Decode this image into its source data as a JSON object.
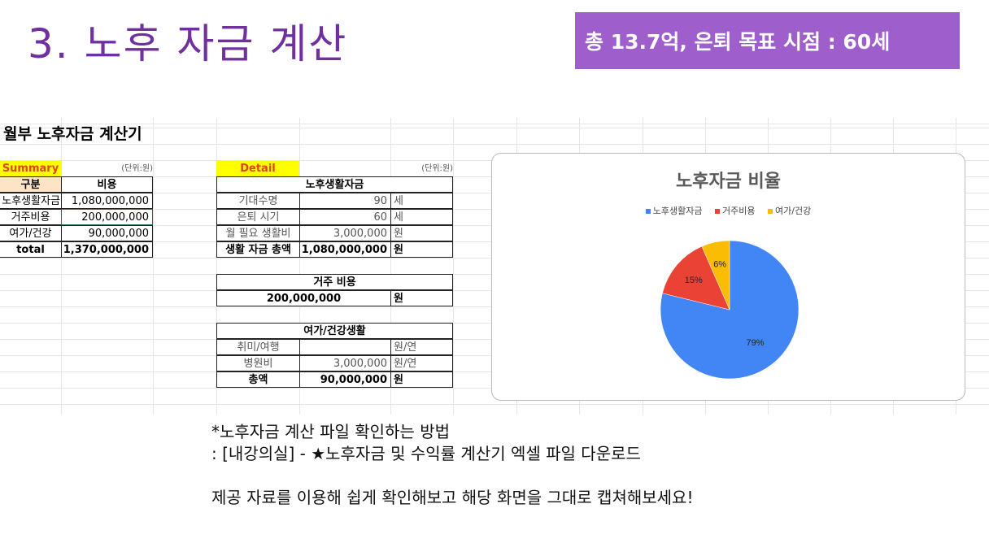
{
  "slide": {
    "title": "3. 노후 자금 계산",
    "banner": "총 13.7억, 은퇴 목표 시점 : 60세"
  },
  "sheet": {
    "title": "월부 노후자금 계산기",
    "summary": {
      "label": "Summary",
      "unit": "(단위:원)",
      "headers": [
        "구분",
        "비용"
      ],
      "rows": [
        [
          "노후생활자금",
          "1,080,000,000"
        ],
        [
          "거주비용",
          "200,000,000"
        ],
        [
          "여가/건강",
          "90,000,000"
        ],
        [
          "total",
          "1,370,000,000"
        ]
      ]
    },
    "detail": {
      "label": "Detail",
      "unit": "(단위:원)",
      "living": {
        "header": "노후생활자금",
        "rows": [
          [
            "기대수명",
            "90",
            "세"
          ],
          [
            "은퇴 시기",
            "60",
            "세"
          ],
          [
            "월 필요 생활비",
            "3,000,000",
            "원"
          ],
          [
            "생활 자금 총액",
            "1,080,000,000",
            "원"
          ]
        ]
      },
      "housing": {
        "header": "거주 비용",
        "value": "200,000,000",
        "unit": "원"
      },
      "leisure": {
        "header": "여가/건강생활",
        "rows": [
          [
            "취미/여행",
            "",
            "원/연"
          ],
          [
            "병원비",
            "3,000,000",
            "원/연"
          ],
          [
            "총액",
            "90,000,000",
            "원"
          ]
        ]
      }
    }
  },
  "chart_data": {
    "type": "pie",
    "title": "노후자금 비율",
    "categories": [
      "노후생활자금",
      "거주비용",
      "여가/건강"
    ],
    "values": [
      1080000000,
      200000000,
      90000000
    ],
    "labels": [
      "79%",
      "15%",
      "6%"
    ],
    "colors": [
      "#4285f4",
      "#ea4335",
      "#fbbc04"
    ],
    "legend": "top"
  },
  "notes": {
    "line1": "*노후자금 계산 파일 확인하는 방법",
    "line2": ": [내강의실] - ★노후자금 및 수익률 계산기 엑셀 파일 다운로드",
    "line3": "제공 자료를 이용해 쉽게 확인해보고 해당 화면을 그대로 캡쳐해보세요!"
  }
}
